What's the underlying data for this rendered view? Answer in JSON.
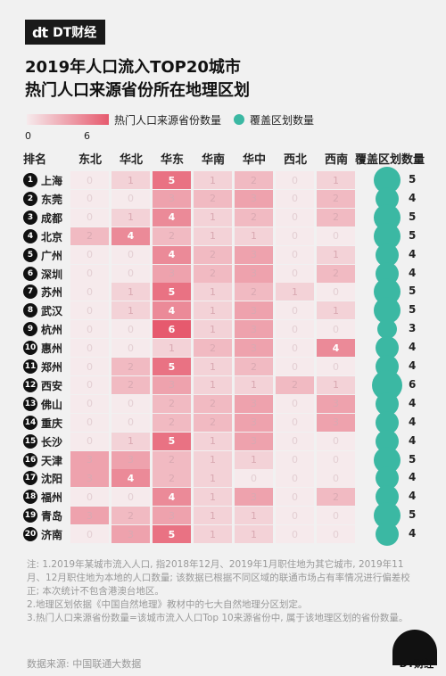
{
  "brand": {
    "logo_mark": "dt",
    "logo_text": "DT财经",
    "footer": "DT财经"
  },
  "title_line1": "2019年人口流入TOP20城市",
  "title_line2": "热门人口来源省份所在地理区划",
  "legend": {
    "heat_label": "热门人口来源省份数量",
    "heat_min": "0",
    "heat_max": "6",
    "coverage_label": "覆盖区划数量"
  },
  "header": {
    "rank": "排名",
    "coverage": "覆盖区划数量"
  },
  "colors": {
    "heat_low": "#f6eaec",
    "heat_high": "#e65a6e",
    "coverage": "#3bb8a3"
  },
  "chart_data": {
    "type": "heatmap",
    "title": "2019年人口流入TOP20城市 热门人口来源省份所在地理区划",
    "regions": [
      "东北",
      "华北",
      "华东",
      "华南",
      "华中",
      "西北",
      "西南"
    ],
    "heat_range": [
      0,
      6
    ],
    "rows": [
      {
        "rank": "1",
        "city": "上海",
        "values": [
          "0",
          "1",
          "5",
          "1",
          "2",
          "0",
          "1"
        ],
        "coverage": "5"
      },
      {
        "rank": "2",
        "city": "东莞",
        "values": [
          "0",
          "0",
          "3",
          "2",
          "3",
          "0",
          "2"
        ],
        "coverage": "4"
      },
      {
        "rank": "3",
        "city": "成都",
        "values": [
          "0",
          "1",
          "4",
          "1",
          "2",
          "0",
          "2"
        ],
        "coverage": "5"
      },
      {
        "rank": "4",
        "city": "北京",
        "values": [
          "2",
          "4",
          "2",
          "1",
          "1",
          "0",
          "0"
        ],
        "coverage": "5"
      },
      {
        "rank": "5",
        "city": "广州",
        "values": [
          "0",
          "0",
          "4",
          "2",
          "3",
          "0",
          "1"
        ],
        "coverage": "4"
      },
      {
        "rank": "6",
        "city": "深圳",
        "values": [
          "0",
          "0",
          "3",
          "2",
          "3",
          "0",
          "2"
        ],
        "coverage": "4"
      },
      {
        "rank": "7",
        "city": "苏州",
        "values": [
          "0",
          "1",
          "5",
          "1",
          "2",
          "1",
          "0"
        ],
        "coverage": "5"
      },
      {
        "rank": "8",
        "city": "武汉",
        "values": [
          "0",
          "1",
          "4",
          "1",
          "3",
          "0",
          "1"
        ],
        "coverage": "5"
      },
      {
        "rank": "9",
        "city": "杭州",
        "values": [
          "0",
          "0",
          "6",
          "1",
          "3",
          "0",
          "0"
        ],
        "coverage": "3"
      },
      {
        "rank": "10",
        "city": "惠州",
        "values": [
          "0",
          "0",
          "1",
          "2",
          "3",
          "0",
          "4"
        ],
        "coverage": "4"
      },
      {
        "rank": "11",
        "city": "郑州",
        "values": [
          "0",
          "2",
          "5",
          "1",
          "2",
          "0",
          "0"
        ],
        "coverage": "4"
      },
      {
        "rank": "12",
        "city": "西安",
        "values": [
          "0",
          "2",
          "3",
          "1",
          "1",
          "2",
          "1"
        ],
        "coverage": "6"
      },
      {
        "rank": "13",
        "city": "佛山",
        "values": [
          "0",
          "0",
          "2",
          "2",
          "3",
          "0",
          "3"
        ],
        "coverage": "4"
      },
      {
        "rank": "14",
        "city": "重庆",
        "values": [
          "0",
          "0",
          "2",
          "2",
          "3",
          "0",
          "3"
        ],
        "coverage": "4"
      },
      {
        "rank": "15",
        "city": "长沙",
        "values": [
          "0",
          "1",
          "5",
          "1",
          "3",
          "0",
          "0"
        ],
        "coverage": "4"
      },
      {
        "rank": "16",
        "city": "天津",
        "values": [
          "3",
          "3",
          "2",
          "1",
          "1",
          "0",
          "0"
        ],
        "coverage": "5"
      },
      {
        "rank": "17",
        "city": "沈阳",
        "values": [
          "3",
          "4",
          "2",
          "1",
          "0",
          "0",
          "0"
        ],
        "coverage": "4"
      },
      {
        "rank": "18",
        "city": "福州",
        "values": [
          "0",
          "0",
          "4",
          "1",
          "3",
          "0",
          "2"
        ],
        "coverage": "4"
      },
      {
        "rank": "19",
        "city": "青岛",
        "values": [
          "3",
          "2",
          "3",
          "1",
          "1",
          "0",
          "0"
        ],
        "coverage": "5"
      },
      {
        "rank": "20",
        "city": "济南",
        "values": [
          "0",
          "3",
          "5",
          "1",
          "1",
          "0",
          "0"
        ],
        "coverage": "4"
      }
    ]
  },
  "notes": [
    "注: 1.2019年某城市流入人口, 指2018年12月、2019年1月职住地为其它城市, 2019年11月、12月职住地为本地的人口数量; 该数据已根据不同区域的联通市场占有率情况进行偏差校正; 本次统计不包含港澳台地区。",
    "2.地理区划依据《中国自然地理》教材中的七大自然地理分区划定。",
    "3.热门人口来源省份数量=该城市流入人口Top 10来源省份中, 属于该地理区划的省份数量。"
  ],
  "source": "数据来源: 中国联通大数据"
}
